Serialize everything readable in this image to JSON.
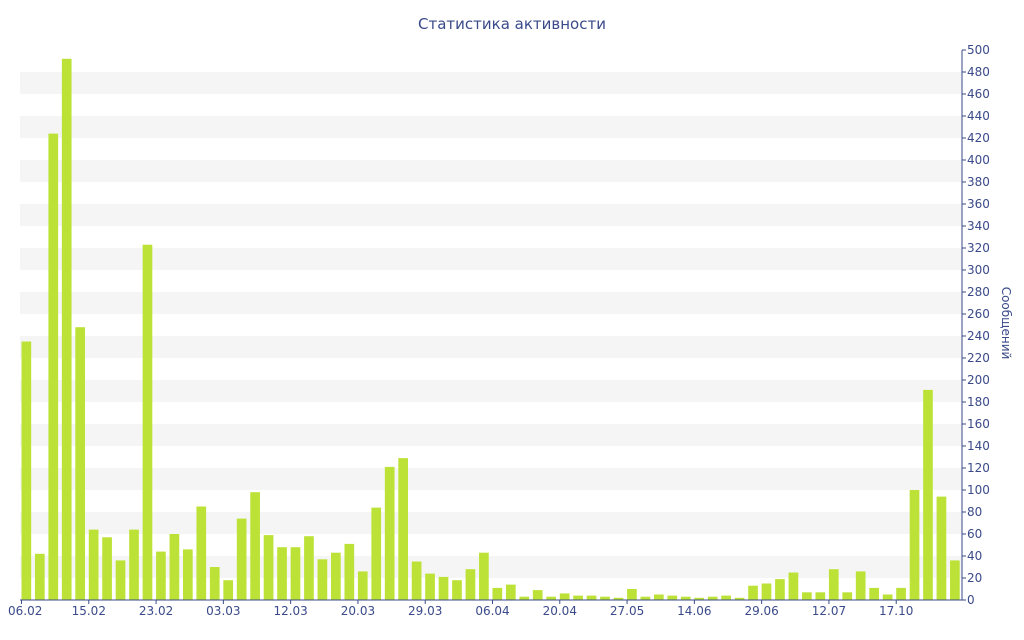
{
  "chart_data": {
    "type": "bar",
    "title": "Статистика активности",
    "xlabel": "",
    "ylabel": "Сообщений",
    "ylim": [
      0,
      500
    ],
    "y_ticks": [
      0,
      20,
      40,
      60,
      80,
      100,
      120,
      140,
      160,
      180,
      200,
      220,
      240,
      260,
      280,
      300,
      320,
      340,
      360,
      380,
      400,
      420,
      440,
      460,
      480,
      500
    ],
    "x_tick_labels": [
      {
        "bar_index": 0,
        "label": "06.02"
      },
      {
        "bar_index": 5,
        "label": "15.02"
      },
      {
        "bar_index": 10,
        "label": "23.02"
      },
      {
        "bar_index": 15,
        "label": "03.03"
      },
      {
        "bar_index": 20,
        "label": "12.03"
      },
      {
        "bar_index": 25,
        "label": "20.03"
      },
      {
        "bar_index": 30,
        "label": "29.03"
      },
      {
        "bar_index": 35,
        "label": "06.04"
      },
      {
        "bar_index": 40,
        "label": "20.04"
      },
      {
        "bar_index": 45,
        "label": "27.05"
      },
      {
        "bar_index": 50,
        "label": "14.06"
      },
      {
        "bar_index": 55,
        "label": "29.06"
      },
      {
        "bar_index": 60,
        "label": "12.07"
      },
      {
        "bar_index": 65,
        "label": "17.10"
      }
    ],
    "values": [
      235,
      42,
      424,
      492,
      248,
      64,
      57,
      36,
      64,
      323,
      44,
      60,
      46,
      85,
      30,
      18,
      74,
      98,
      59,
      48,
      48,
      58,
      37,
      43,
      51,
      26,
      84,
      121,
      129,
      35,
      24,
      21,
      18,
      28,
      43,
      11,
      14,
      3,
      9,
      3,
      6,
      4,
      4,
      3,
      2,
      10,
      3,
      5,
      4,
      3,
      2,
      3,
      4,
      2,
      13,
      15,
      19,
      25,
      7,
      7,
      28,
      7,
      26,
      11,
      5,
      11,
      100,
      191,
      94,
      36
    ],
    "bar_color": "#bde237",
    "band_color": "#f5f5f5",
    "text_color": "#3a4a8a",
    "grid": true,
    "legend": "none"
  }
}
